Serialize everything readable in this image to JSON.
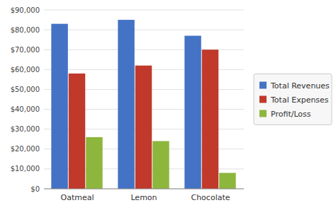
{
  "chart_data": {
    "type": "bar",
    "categories": [
      "Oatmeal",
      "Lemon",
      "Chocolate"
    ],
    "series": [
      {
        "name": "Total Revenues",
        "color": "#4472C4",
        "values": [
          83000,
          85000,
          77000
        ]
      },
      {
        "name": "Total Expenses",
        "color": "#C0392B",
        "values": [
          58000,
          62000,
          70000
        ]
      },
      {
        "name": "Profit/Loss",
        "color": "#8DB63C",
        "values": [
          26000,
          24000,
          8000
        ]
      }
    ],
    "ylim": [
      0,
      90000
    ],
    "yticks": [
      {
        "value": 0,
        "label": "$0"
      },
      {
        "value": 10000,
        "label": "$10,000"
      },
      {
        "value": 20000,
        "label": "$20,000"
      },
      {
        "value": 30000,
        "label": "$30,000"
      },
      {
        "value": 40000,
        "label": "$40,000"
      },
      {
        "value": 50000,
        "label": "$50,000"
      },
      {
        "value": 60000,
        "label": "$60,000"
      },
      {
        "value": 70000,
        "label": "$70,000"
      },
      {
        "value": 80000,
        "label": "$80,000"
      },
      {
        "value": 90000,
        "label": "$90,000"
      }
    ],
    "grid": true,
    "legend": "right"
  }
}
